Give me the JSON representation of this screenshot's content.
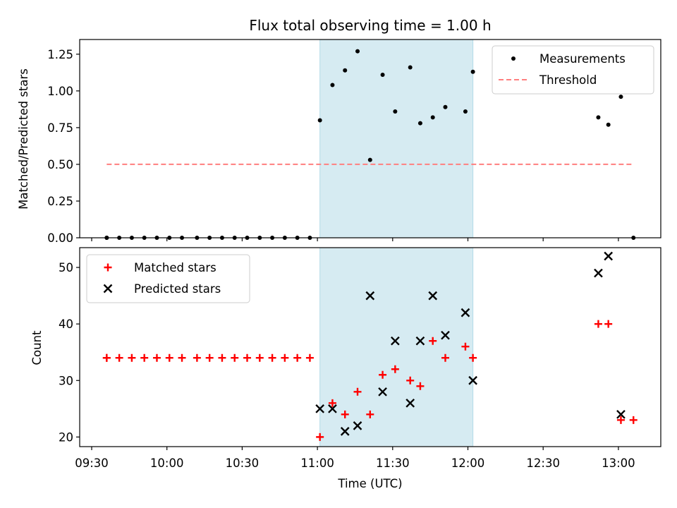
{
  "chart_data": [
    {
      "type": "scatter",
      "title": "Flux total observing time = 1.00 h",
      "xlabel": "",
      "ylabel": "Matched/Predicted stars",
      "ylim": [
        0,
        1.35
      ],
      "yticks": [
        0.0,
        0.25,
        0.5,
        0.75,
        1.0,
        1.25
      ],
      "ytick_labels": [
        "0.00",
        "0.25",
        "0.50",
        "0.75",
        "1.00",
        "1.25"
      ],
      "highlight_span": {
        "start": "11:01",
        "end": "12:02",
        "color": "#add8e6"
      },
      "legend": {
        "placement": "top-right",
        "entries": [
          "Measurements",
          "Threshold"
        ]
      },
      "series": [
        {
          "name": "Measurements",
          "marker": "point",
          "color": "#000000",
          "points": [
            [
              "09:36",
              0.0
            ],
            [
              "09:36",
              0.0
            ],
            [
              "09:41",
              0.0
            ],
            [
              "09:46",
              0.0
            ],
            [
              "09:51",
              0.0
            ],
            [
              "09:56",
              0.0
            ],
            [
              "10:01",
              0.0
            ],
            [
              "10:06",
              0.0
            ],
            [
              "10:12",
              0.0
            ],
            [
              "10:17",
              0.0
            ],
            [
              "10:22",
              0.0
            ],
            [
              "10:27",
              0.0
            ],
            [
              "10:32",
              0.0
            ],
            [
              "10:37",
              0.0
            ],
            [
              "10:42",
              0.0
            ],
            [
              "10:47",
              0.0
            ],
            [
              "10:52",
              0.0
            ],
            [
              "10:57",
              0.0
            ],
            [
              "11:01",
              0.8
            ],
            [
              "11:06",
              1.04
            ],
            [
              "11:11",
              1.14
            ],
            [
              "11:16",
              1.27
            ],
            [
              "11:21",
              0.53
            ],
            [
              "11:26",
              1.11
            ],
            [
              "11:31",
              0.86
            ],
            [
              "11:37",
              1.16
            ],
            [
              "11:41",
              0.78
            ],
            [
              "11:46",
              0.82
            ],
            [
              "11:51",
              0.89
            ],
            [
              "11:59",
              0.86
            ],
            [
              "12:02",
              1.13
            ],
            [
              "12:52",
              0.82
            ],
            [
              "12:56",
              0.77
            ],
            [
              "13:01",
              0.96
            ],
            [
              "13:06",
              0.0
            ]
          ]
        },
        {
          "name": "Threshold",
          "marker": "dashed-line",
          "color": "#ff7f7f",
          "points": [
            [
              "09:36",
              0.5
            ],
            [
              "13:06",
              0.5
            ]
          ]
        }
      ]
    },
    {
      "type": "scatter",
      "title": "",
      "xlabel": "Time (UTC)",
      "ylabel": "Count",
      "ylim": [
        18.3,
        53.5
      ],
      "yticks": [
        20,
        30,
        40,
        50
      ],
      "ytick_labels": [
        "20",
        "30",
        "40",
        "50"
      ],
      "xticks": [
        "09:30",
        "10:00",
        "10:30",
        "11:00",
        "11:30",
        "12:00",
        "12:30",
        "13:00"
      ],
      "highlight_span": {
        "start": "11:01",
        "end": "12:02",
        "color": "#add8e6"
      },
      "legend": {
        "placement": "top-left",
        "entries": [
          "Matched stars",
          "Predicted stars"
        ]
      },
      "series": [
        {
          "name": "Matched stars",
          "marker": "plus",
          "color": "#ff0000",
          "points": [
            [
              "09:36",
              34
            ],
            [
              "09:36",
              34
            ],
            [
              "09:41",
              34
            ],
            [
              "09:46",
              34
            ],
            [
              "09:51",
              34
            ],
            [
              "09:56",
              34
            ],
            [
              "10:01",
              34
            ],
            [
              "10:06",
              34
            ],
            [
              "10:12",
              34
            ],
            [
              "10:17",
              34
            ],
            [
              "10:22",
              34
            ],
            [
              "10:27",
              34
            ],
            [
              "10:32",
              34
            ],
            [
              "10:37",
              34
            ],
            [
              "10:42",
              34
            ],
            [
              "10:47",
              34
            ],
            [
              "10:52",
              34
            ],
            [
              "10:57",
              34
            ],
            [
              "11:01",
              20
            ],
            [
              "11:06",
              26
            ],
            [
              "11:11",
              24
            ],
            [
              "11:16",
              28
            ],
            [
              "11:21",
              24
            ],
            [
              "11:26",
              31
            ],
            [
              "11:31",
              32
            ],
            [
              "11:37",
              30
            ],
            [
              "11:41",
              29
            ],
            [
              "11:46",
              37
            ],
            [
              "11:51",
              34
            ],
            [
              "11:59",
              36
            ],
            [
              "12:02",
              34
            ],
            [
              "12:52",
              40
            ],
            [
              "12:56",
              40
            ],
            [
              "13:01",
              23
            ],
            [
              "13:06",
              23
            ]
          ]
        },
        {
          "name": "Predicted stars",
          "marker": "x",
          "color": "#000000",
          "points": [
            [
              "11:01",
              25
            ],
            [
              "11:06",
              25
            ],
            [
              "11:11",
              21
            ],
            [
              "11:16",
              22
            ],
            [
              "11:21",
              45
            ],
            [
              "11:26",
              28
            ],
            [
              "11:31",
              37
            ],
            [
              "11:37",
              26
            ],
            [
              "11:41",
              37
            ],
            [
              "11:46",
              45
            ],
            [
              "11:51",
              38
            ],
            [
              "11:59",
              42
            ],
            [
              "12:02",
              30
            ],
            [
              "12:52",
              49
            ],
            [
              "12:56",
              52
            ],
            [
              "13:01",
              24
            ]
          ]
        }
      ]
    }
  ]
}
